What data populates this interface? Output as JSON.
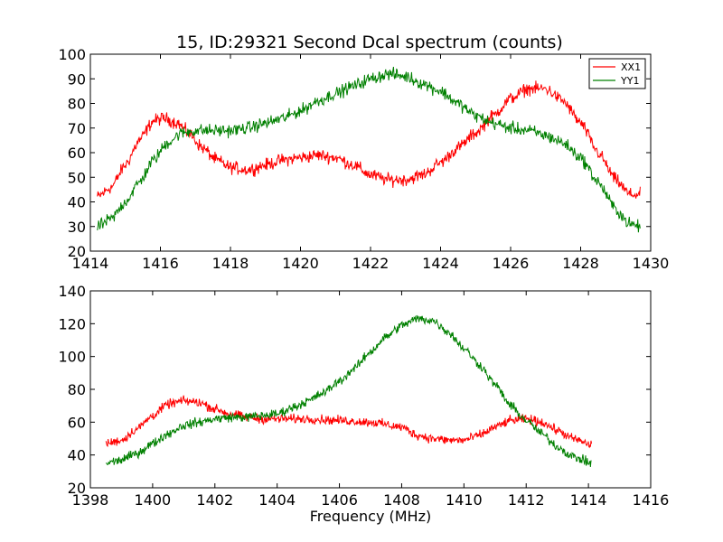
{
  "chart_data": [
    {
      "type": "line",
      "title": "15, ID:29321 Second Dcal spectrum (counts)",
      "xlabel": "",
      "ylabel": "",
      "xlim": [
        1414,
        1430
      ],
      "ylim": [
        20,
        100
      ],
      "xticks": [
        "1414",
        "1416",
        "1418",
        "1420",
        "1422",
        "1424",
        "1426",
        "1428",
        "1430"
      ],
      "yticks": [
        "20",
        "30",
        "40",
        "50",
        "60",
        "70",
        "80",
        "90",
        "100"
      ],
      "grid": false,
      "legend": {
        "position": "top-right",
        "entries": [
          "XX1",
          "YY1"
        ]
      },
      "x_range": [
        1414.2,
        1429.7
      ],
      "noise": 2.2,
      "series": [
        {
          "name": "XX1",
          "color": "#ff0000",
          "points": [
            [
              1414.2,
              42
            ],
            [
              1414.6,
              46
            ],
            [
              1415.0,
              55
            ],
            [
              1415.4,
              65
            ],
            [
              1415.8,
              73
            ],
            [
              1416.1,
              74
            ],
            [
              1416.5,
              72
            ],
            [
              1416.8,
              68
            ],
            [
              1417.2,
              62
            ],
            [
              1417.6,
              57
            ],
            [
              1418.0,
              54
            ],
            [
              1418.5,
              53
            ],
            [
              1419.0,
              55
            ],
            [
              1419.5,
              57
            ],
            [
              1420.0,
              58
            ],
            [
              1420.5,
              59
            ],
            [
              1421.0,
              58
            ],
            [
              1421.5,
              55
            ],
            [
              1422.0,
              51
            ],
            [
              1422.5,
              49
            ],
            [
              1423.0,
              49
            ],
            [
              1423.5,
              51
            ],
            [
              1424.0,
              56
            ],
            [
              1424.5,
              62
            ],
            [
              1425.0,
              68
            ],
            [
              1425.5,
              75
            ],
            [
              1426.0,
              82
            ],
            [
              1426.5,
              86
            ],
            [
              1427.0,
              86
            ],
            [
              1427.5,
              81
            ],
            [
              1428.0,
              72
            ],
            [
              1428.5,
              60
            ],
            [
              1429.0,
              49
            ],
            [
              1429.4,
              43
            ],
            [
              1429.7,
              43
            ]
          ]
        },
        {
          "name": "YY1",
          "color": "#008000",
          "points": [
            [
              1414.2,
              30
            ],
            [
              1414.6,
              33
            ],
            [
              1415.0,
              40
            ],
            [
              1415.4,
              48
            ],
            [
              1415.8,
              57
            ],
            [
              1416.2,
              64
            ],
            [
              1416.6,
              68
            ],
            [
              1417.0,
              69
            ],
            [
              1417.5,
              69
            ],
            [
              1418.0,
              69
            ],
            [
              1418.5,
              70
            ],
            [
              1419.0,
              72
            ],
            [
              1419.5,
              74
            ],
            [
              1420.0,
              77
            ],
            [
              1420.5,
              81
            ],
            [
              1421.0,
              84
            ],
            [
              1421.5,
              87
            ],
            [
              1422.0,
              90
            ],
            [
              1422.5,
              92
            ],
            [
              1423.0,
              91
            ],
            [
              1423.5,
              88
            ],
            [
              1424.0,
              85
            ],
            [
              1424.5,
              80
            ],
            [
              1425.0,
              75
            ],
            [
              1425.5,
              72
            ],
            [
              1426.0,
              70
            ],
            [
              1426.5,
              69
            ],
            [
              1427.0,
              67
            ],
            [
              1427.5,
              64
            ],
            [
              1428.0,
              58
            ],
            [
              1428.5,
              48
            ],
            [
              1429.0,
              37
            ],
            [
              1429.4,
              31
            ],
            [
              1429.7,
              30
            ]
          ]
        }
      ]
    },
    {
      "type": "line",
      "title": "",
      "xlabel": "Frequency (MHz)",
      "ylabel": "",
      "xlim": [
        1398,
        1416
      ],
      "ylim": [
        20,
        140
      ],
      "xticks": [
        "1398",
        "1400",
        "1402",
        "1404",
        "1406",
        "1408",
        "1410",
        "1412",
        "1414",
        "1416"
      ],
      "yticks": [
        "20",
        "40",
        "60",
        "80",
        "100",
        "120",
        "140"
      ],
      "grid": false,
      "x_range": [
        1398.5,
        1414.1
      ],
      "noise": 2.4,
      "series": [
        {
          "name": "XX1",
          "color": "#ff0000",
          "points": [
            [
              1398.5,
              47
            ],
            [
              1399.0,
              49
            ],
            [
              1399.5,
              56
            ],
            [
              1400.0,
              64
            ],
            [
              1400.5,
              71
            ],
            [
              1401.0,
              73
            ],
            [
              1401.5,
              72
            ],
            [
              1402.0,
              68
            ],
            [
              1402.5,
              65
            ],
            [
              1403.0,
              63
            ],
            [
              1403.5,
              62
            ],
            [
              1404.0,
              62
            ],
            [
              1405.0,
              62
            ],
            [
              1406.0,
              61
            ],
            [
              1407.0,
              60
            ],
            [
              1408.0,
              57
            ],
            [
              1408.5,
              52
            ],
            [
              1409.0,
              50
            ],
            [
              1409.5,
              49
            ],
            [
              1410.0,
              49
            ],
            [
              1410.5,
              52
            ],
            [
              1411.0,
              57
            ],
            [
              1411.5,
              61
            ],
            [
              1412.0,
              62
            ],
            [
              1412.5,
              60
            ],
            [
              1413.0,
              55
            ],
            [
              1413.5,
              50
            ],
            [
              1414.1,
              46
            ]
          ]
        },
        {
          "name": "YY1",
          "color": "#008000",
          "points": [
            [
              1398.5,
              35
            ],
            [
              1399.0,
              37
            ],
            [
              1399.5,
              41
            ],
            [
              1400.0,
              47
            ],
            [
              1400.5,
              53
            ],
            [
              1401.0,
              58
            ],
            [
              1401.5,
              60
            ],
            [
              1402.0,
              62
            ],
            [
              1402.5,
              63
            ],
            [
              1403.0,
              63
            ],
            [
              1403.5,
              64
            ],
            [
              1404.0,
              65
            ],
            [
              1404.5,
              69
            ],
            [
              1405.0,
              73
            ],
            [
              1405.5,
              78
            ],
            [
              1406.0,
              85
            ],
            [
              1406.5,
              93
            ],
            [
              1407.0,
              103
            ],
            [
              1407.5,
              112
            ],
            [
              1408.0,
              119
            ],
            [
              1408.5,
              123
            ],
            [
              1409.0,
              122
            ],
            [
              1409.5,
              115
            ],
            [
              1410.0,
              105
            ],
            [
              1410.5,
              95
            ],
            [
              1411.0,
              83
            ],
            [
              1411.5,
              70
            ],
            [
              1412.0,
              61
            ],
            [
              1412.5,
              53
            ],
            [
              1413.0,
              45
            ],
            [
              1413.5,
              39
            ],
            [
              1414.1,
              35
            ]
          ]
        }
      ]
    }
  ]
}
